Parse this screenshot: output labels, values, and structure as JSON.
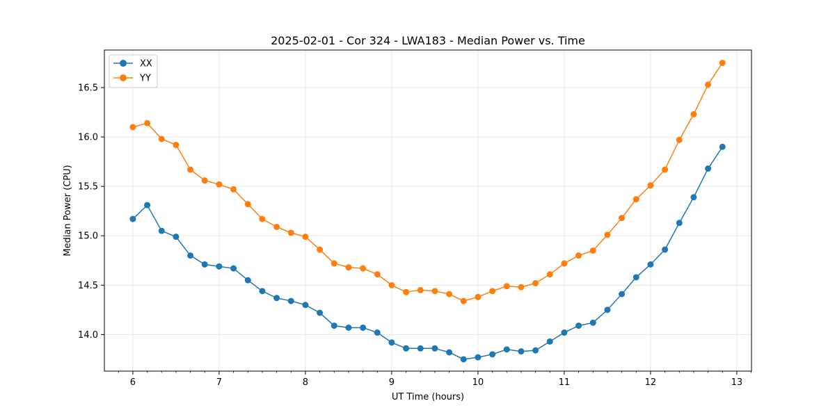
{
  "chart_data": {
    "type": "line",
    "title": "2025-02-01 - Cor 324 - LWA183 - Median Power vs. Time",
    "xlabel": "UT Time (hours)",
    "ylabel": "Median Power (CPU)",
    "xlim": [
      5.67,
      13.17
    ],
    "ylim": [
      13.63,
      16.88
    ],
    "xticks": [
      6,
      7,
      8,
      9,
      10,
      11,
      12,
      13
    ],
    "xtick_labels": [
      "6",
      "7",
      "8",
      "9",
      "10",
      "11",
      "12",
      "13"
    ],
    "yticks": [
      14.0,
      14.5,
      15.0,
      15.5,
      16.0,
      16.5
    ],
    "ytick_labels": [
      "14.0",
      "14.5",
      "15.0",
      "15.5",
      "16.0",
      "16.5"
    ],
    "grid": true,
    "legend_position": "top-left",
    "x": [
      6.0,
      6.1667,
      6.3333,
      6.5,
      6.6667,
      6.8333,
      7.0,
      7.1667,
      7.3333,
      7.5,
      7.6667,
      7.8333,
      8.0,
      8.1667,
      8.3333,
      8.5,
      8.6667,
      8.8333,
      9.0,
      9.1667,
      9.3333,
      9.5,
      9.6667,
      9.8333,
      10.0,
      10.1667,
      10.3333,
      10.5,
      10.6667,
      10.8333,
      11.0,
      11.1667,
      11.3333,
      11.5,
      11.6667,
      11.8333,
      12.0,
      12.1667,
      12.3333,
      12.5,
      12.6667,
      12.8333
    ],
    "series": [
      {
        "name": "XX",
        "color": "#1f77b4",
        "values": [
          15.17,
          15.31,
          15.05,
          14.99,
          14.8,
          14.71,
          14.69,
          14.67,
          14.55,
          14.44,
          14.37,
          14.34,
          14.3,
          14.22,
          14.09,
          14.07,
          14.07,
          14.02,
          13.92,
          13.86,
          13.86,
          13.86,
          13.82,
          13.75,
          13.77,
          13.8,
          13.85,
          13.83,
          13.84,
          13.93,
          14.02,
          14.09,
          14.12,
          14.25,
          14.41,
          14.58,
          14.71,
          14.86,
          15.13,
          15.39,
          15.68,
          15.9
        ]
      },
      {
        "name": "YY",
        "color": "#ff7f0e",
        "values": [
          16.1,
          16.14,
          15.98,
          15.92,
          15.67,
          15.56,
          15.52,
          15.47,
          15.32,
          15.17,
          15.09,
          15.03,
          14.99,
          14.86,
          14.72,
          14.68,
          14.67,
          14.61,
          14.5,
          14.43,
          14.45,
          14.44,
          14.41,
          14.34,
          14.38,
          14.44,
          14.49,
          14.48,
          14.52,
          14.61,
          14.72,
          14.8,
          14.85,
          15.01,
          15.18,
          15.37,
          15.51,
          15.67,
          15.97,
          16.23,
          16.53,
          16.75
        ]
      }
    ]
  }
}
